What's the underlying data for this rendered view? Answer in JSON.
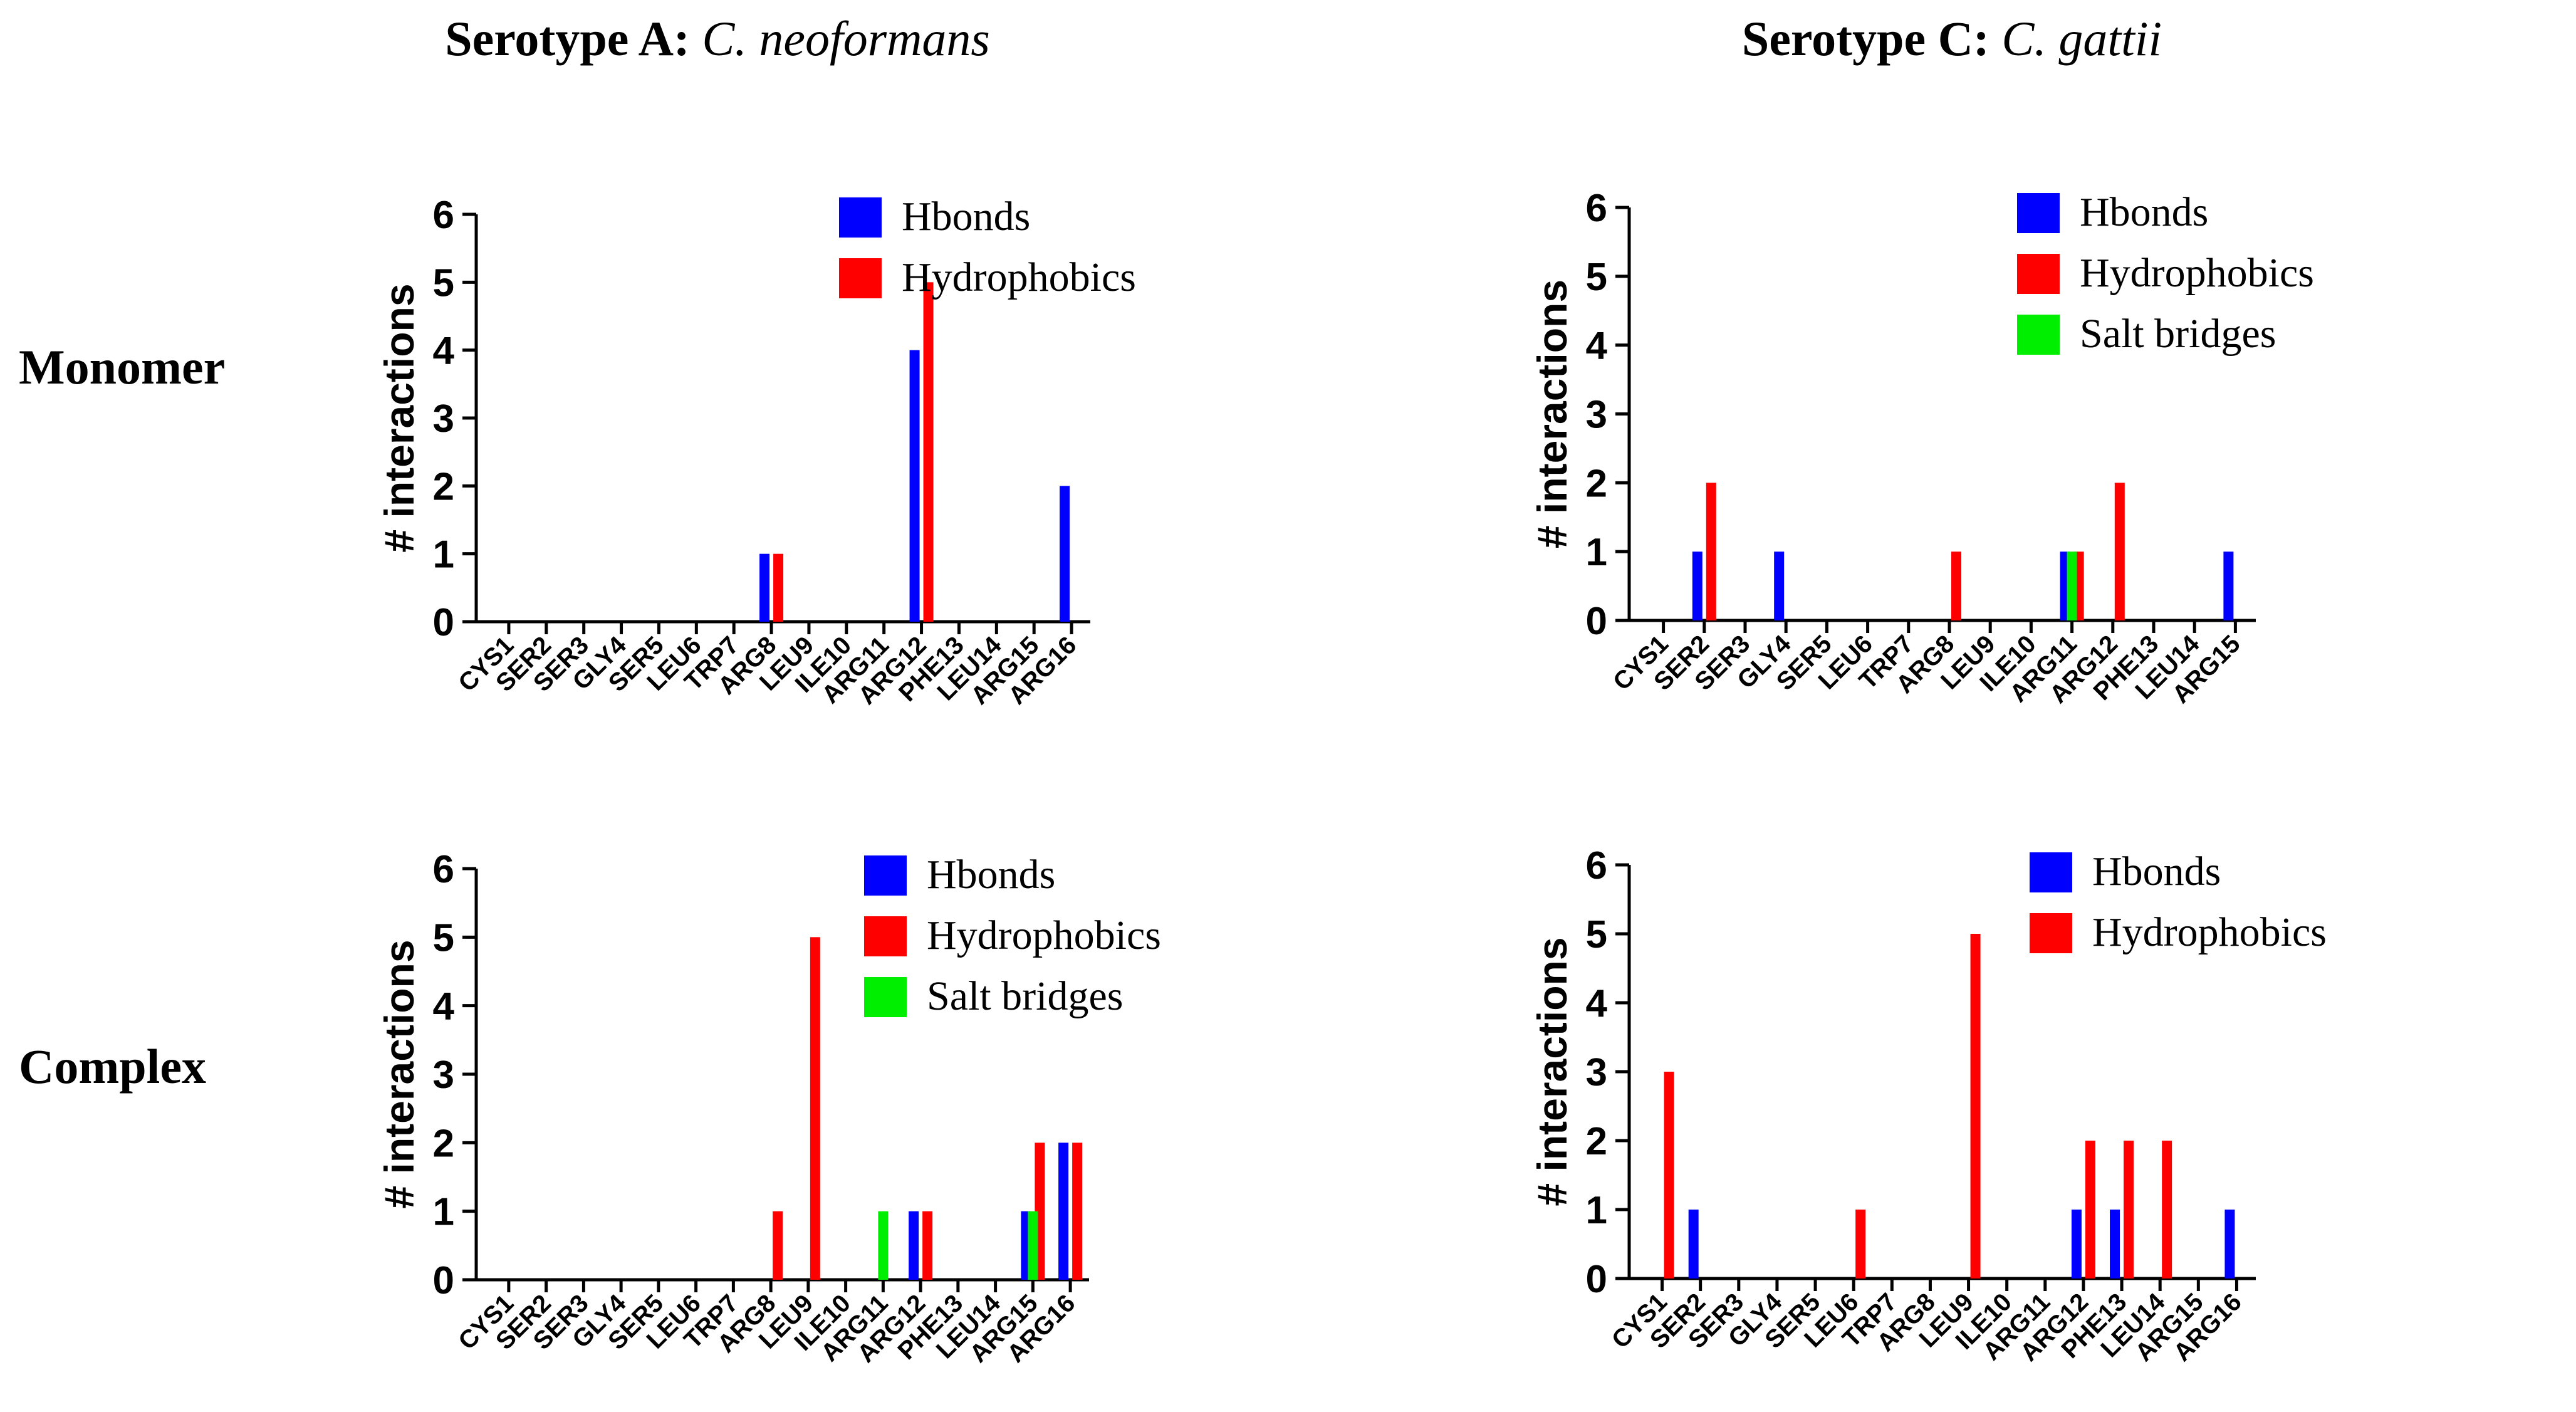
{
  "column_headers": [
    {
      "bold": "Serotype A:",
      "italic": "C. neoformans"
    },
    {
      "bold": "Serotype C:",
      "italic": "C. gattii"
    }
  ],
  "row_labels": [
    "Monomer",
    "Complex"
  ],
  "colors": {
    "Hbonds": "#0000ff",
    "Hydrophobics": "#ff0000",
    "Salt bridges": "#00ee00",
    "axis": "#000000"
  },
  "chart_data": [
    {
      "id": "monomer-neoformans",
      "type": "bar",
      "ylabel": "# interactions",
      "ylim": [
        0,
        6
      ],
      "yticks": [
        "0",
        "1",
        "2",
        "3",
        "4",
        "5",
        "6"
      ],
      "categories": [
        "CYS1",
        "SER2",
        "SER3",
        "GLY4",
        "SER5",
        "LEU6",
        "TRP7",
        "ARG8",
        "LEU9",
        "ILE10",
        "ARG11",
        "ARG12",
        "PHE13",
        "LEU14",
        "ARG15",
        "ARG16"
      ],
      "series": [
        {
          "name": "Hbonds",
          "values": [
            0,
            0,
            0,
            0,
            0,
            0,
            0,
            1,
            0,
            0,
            0,
            4,
            0,
            0,
            0,
            2
          ]
        },
        {
          "name": "Hydrophobics",
          "values": [
            0,
            0,
            0,
            0,
            0,
            0,
            0,
            1,
            0,
            0,
            0,
            5,
            0,
            0,
            0,
            0
          ]
        }
      ],
      "legend": [
        "Hbonds",
        "Hydrophobics"
      ]
    },
    {
      "id": "monomer-gattii",
      "type": "bar",
      "ylabel": "# interactions",
      "ylim": [
        0,
        6
      ],
      "yticks": [
        "0",
        "1",
        "2",
        "3",
        "4",
        "5",
        "6"
      ],
      "categories": [
        "CYS1",
        "SER2",
        "SER3",
        "GLY4",
        "SER5",
        "LEU6",
        "TRP7",
        "ARG8",
        "LEU9",
        "ILE10",
        "ARG11",
        "ARG12",
        "PHE13",
        "LEU14",
        "ARG15"
      ],
      "series": [
        {
          "name": "Hbonds",
          "values": [
            0,
            1,
            0,
            1,
            0,
            0,
            0,
            0,
            0,
            0,
            1,
            0,
            0,
            0,
            1
          ]
        },
        {
          "name": "Hydrophobics",
          "values": [
            0,
            2,
            0,
            0,
            0,
            0,
            0,
            1,
            0,
            0,
            1,
            2,
            0,
            0,
            0
          ]
        },
        {
          "name": "Salt bridges",
          "values": [
            0,
            0,
            0,
            0,
            0,
            0,
            0,
            0,
            0,
            0,
            1,
            0,
            0,
            0,
            0
          ]
        }
      ],
      "legend": [
        "Hbonds",
        "Hydrophobics",
        "Salt bridges"
      ]
    },
    {
      "id": "complex-neoformans",
      "type": "bar",
      "ylabel": "# interactions",
      "ylim": [
        0,
        6
      ],
      "yticks": [
        "0",
        "1",
        "2",
        "3",
        "4",
        "5",
        "6"
      ],
      "categories": [
        "CYS1",
        "SER2",
        "SER3",
        "GLY4",
        "SER5",
        "LEU6",
        "TRP7",
        "ARG8",
        "LEU9",
        "ILE10",
        "ARG11",
        "ARG12",
        "PHE13",
        "LEU14",
        "ARG15",
        "ARG16"
      ],
      "series": [
        {
          "name": "Hbonds",
          "values": [
            0,
            0,
            0,
            0,
            0,
            0,
            0,
            0,
            0,
            0,
            0,
            1,
            0,
            0,
            1,
            2
          ]
        },
        {
          "name": "Hydrophobics",
          "values": [
            0,
            0,
            0,
            0,
            0,
            0,
            0,
            1,
            5,
            0,
            0,
            1,
            0,
            0,
            2,
            2
          ]
        },
        {
          "name": "Salt bridges",
          "values": [
            0,
            0,
            0,
            0,
            0,
            0,
            0,
            0,
            0,
            0,
            1,
            0,
            0,
            0,
            1,
            0
          ]
        }
      ],
      "legend": [
        "Hbonds",
        "Hydrophobics",
        "Salt bridges"
      ]
    },
    {
      "id": "complex-gattii",
      "type": "bar",
      "ylabel": "# interactions",
      "ylim": [
        0,
        6
      ],
      "yticks": [
        "0",
        "1",
        "2",
        "3",
        "4",
        "5",
        "6"
      ],
      "categories": [
        "CYS1",
        "SER2",
        "SER3",
        "GLY4",
        "SER5",
        "LEU6",
        "TRP7",
        "ARG8",
        "LEU9",
        "ILE10",
        "ARG11",
        "ARG12",
        "PHE13",
        "LEU14",
        "ARG15",
        "ARG16"
      ],
      "series": [
        {
          "name": "Hbonds",
          "values": [
            0,
            1,
            0,
            0,
            0,
            0,
            0,
            0,
            0,
            0,
            0,
            1,
            1,
            0,
            0,
            1
          ]
        },
        {
          "name": "Hydrophobics",
          "values": [
            3,
            0,
            0,
            0,
            0,
            1,
            0,
            0,
            5,
            0,
            0,
            2,
            2,
            2,
            0,
            0
          ]
        }
      ],
      "legend": [
        "Hbonds",
        "Hydrophobics"
      ]
    }
  ]
}
